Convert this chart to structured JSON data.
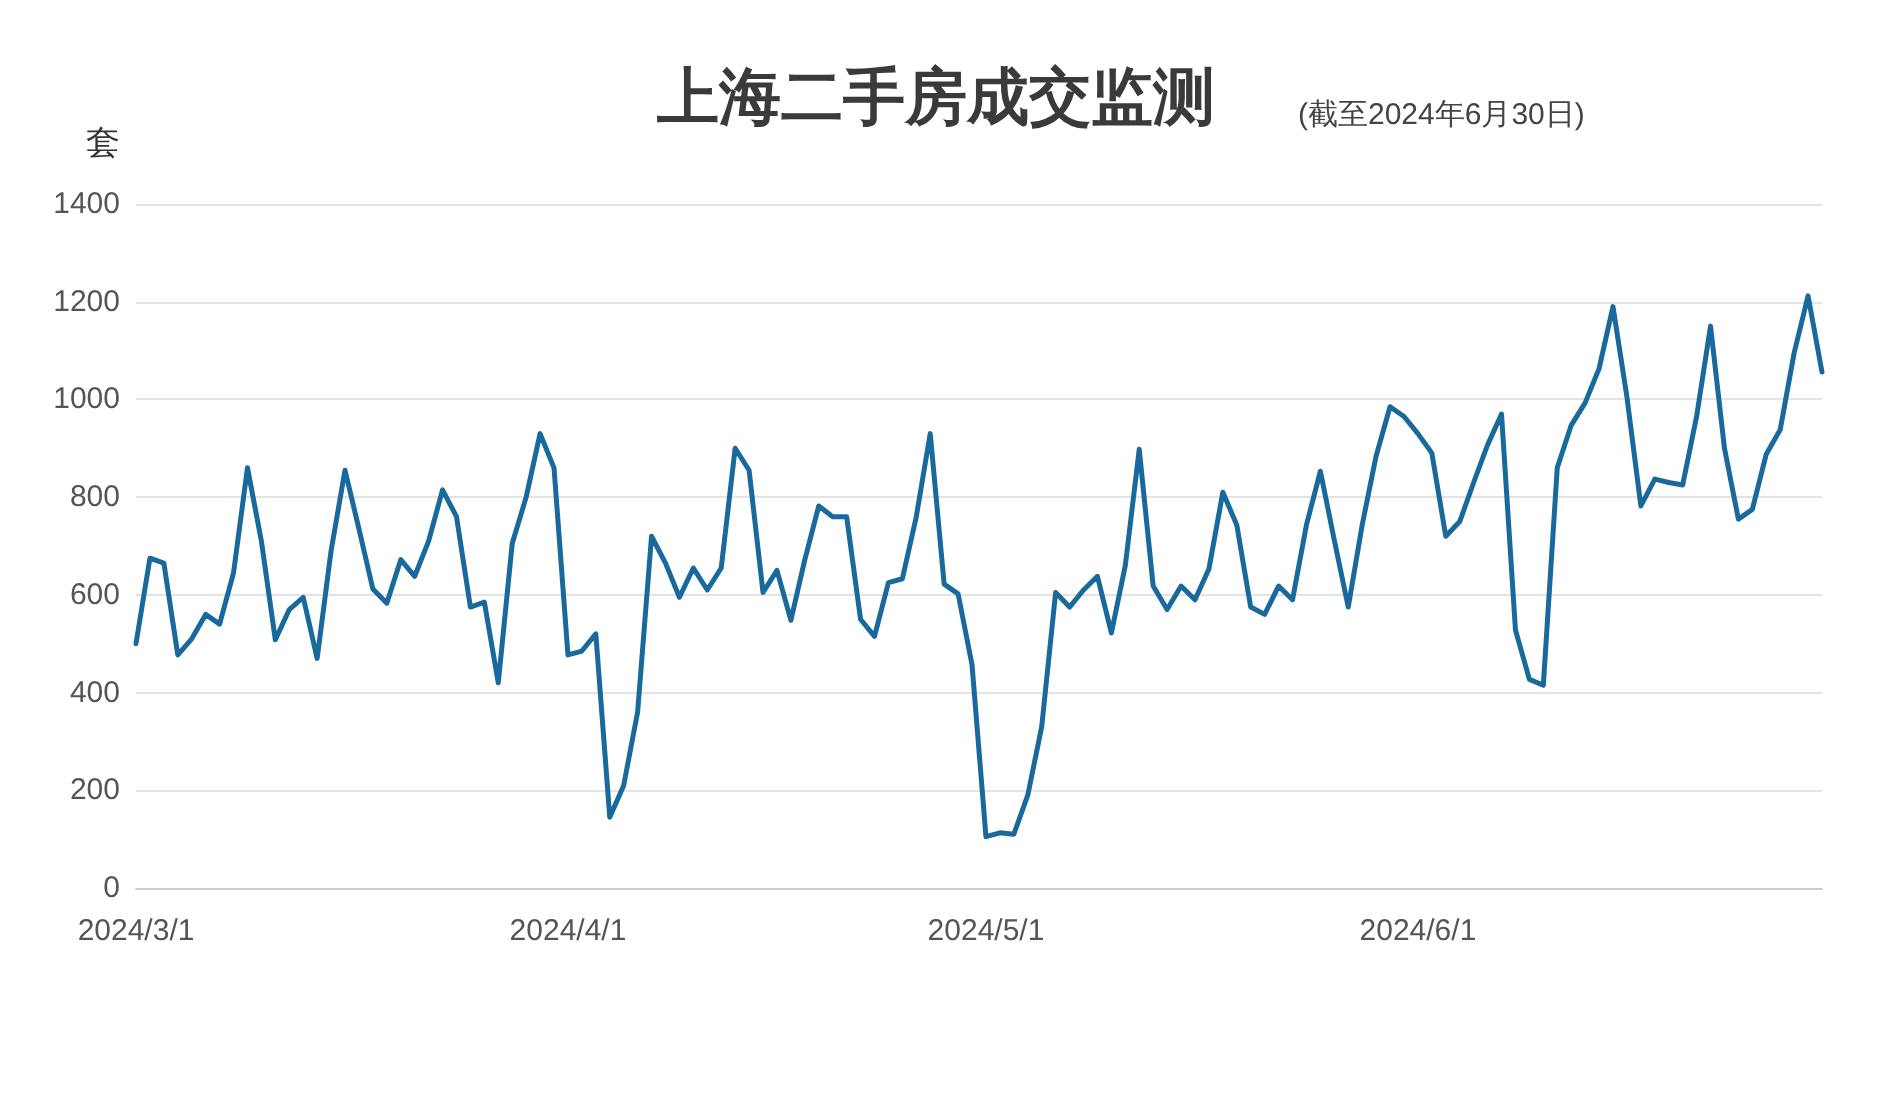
{
  "chart_data": {
    "type": "line",
    "title": "上海二手房成交监测",
    "subtitle": "(截至2024年6月30日)",
    "ylabel": "套",
    "x": [
      "2024-03-01",
      "2024-03-02",
      "2024-03-03",
      "2024-03-04",
      "2024-03-05",
      "2024-03-06",
      "2024-03-07",
      "2024-03-08",
      "2024-03-09",
      "2024-03-10",
      "2024-03-11",
      "2024-03-12",
      "2024-03-13",
      "2024-03-14",
      "2024-03-15",
      "2024-03-16",
      "2024-03-17",
      "2024-03-18",
      "2024-03-19",
      "2024-03-20",
      "2024-03-21",
      "2024-03-22",
      "2024-03-23",
      "2024-03-24",
      "2024-03-25",
      "2024-03-26",
      "2024-03-27",
      "2024-03-28",
      "2024-03-29",
      "2024-03-30",
      "2024-03-31",
      "2024-04-01",
      "2024-04-02",
      "2024-04-03",
      "2024-04-04",
      "2024-04-05",
      "2024-04-06",
      "2024-04-07",
      "2024-04-08",
      "2024-04-09",
      "2024-04-10",
      "2024-04-11",
      "2024-04-12",
      "2024-04-13",
      "2024-04-14",
      "2024-04-15",
      "2024-04-16",
      "2024-04-17",
      "2024-04-18",
      "2024-04-19",
      "2024-04-20",
      "2024-04-21",
      "2024-04-22",
      "2024-04-23",
      "2024-04-24",
      "2024-04-25",
      "2024-04-26",
      "2024-04-27",
      "2024-04-28",
      "2024-04-29",
      "2024-04-30",
      "2024-05-01",
      "2024-05-02",
      "2024-05-03",
      "2024-05-04",
      "2024-05-05",
      "2024-05-06",
      "2024-05-07",
      "2024-05-08",
      "2024-05-09",
      "2024-05-10",
      "2024-05-11",
      "2024-05-12",
      "2024-05-13",
      "2024-05-14",
      "2024-05-15",
      "2024-05-16",
      "2024-05-17",
      "2024-05-18",
      "2024-05-19",
      "2024-05-20",
      "2024-05-21",
      "2024-05-22",
      "2024-05-23",
      "2024-05-24",
      "2024-05-25",
      "2024-05-26",
      "2024-05-27",
      "2024-05-28",
      "2024-05-29",
      "2024-05-30",
      "2024-05-31",
      "2024-06-01",
      "2024-06-02",
      "2024-06-03",
      "2024-06-04",
      "2024-06-05",
      "2024-06-06",
      "2024-06-07",
      "2024-06-08",
      "2024-06-09",
      "2024-06-10",
      "2024-06-11",
      "2024-06-12",
      "2024-06-13",
      "2024-06-14",
      "2024-06-15",
      "2024-06-16",
      "2024-06-17",
      "2024-06-18",
      "2024-06-19",
      "2024-06-20",
      "2024-06-21",
      "2024-06-22",
      "2024-06-23",
      "2024-06-24",
      "2024-06-25",
      "2024-06-26",
      "2024-06-27",
      "2024-06-28",
      "2024-06-29",
      "2024-06-30"
    ],
    "series": [
      {
        "color": "#19699c",
        "values": [
          500,
          675,
          665,
          477,
          510,
          560,
          540,
          645,
          860,
          710,
          508,
          570,
          595,
          470,
          690,
          855,
          735,
          612,
          583,
          672,
          638,
          710,
          815,
          760,
          575,
          585,
          420,
          705,
          800,
          930,
          860,
          477,
          485,
          520,
          145,
          210,
          360,
          720,
          665,
          595,
          655,
          610,
          655,
          900,
          855,
          605,
          650,
          548,
          672,
          782,
          760,
          760,
          550,
          515,
          625,
          633,
          760,
          930,
          622,
          602,
          457,
          105,
          113,
          110,
          190,
          330,
          605,
          575,
          610,
          638,
          522,
          660,
          898,
          618,
          570,
          618,
          590,
          653,
          810,
          743,
          575,
          560,
          618,
          590,
          743,
          853,
          712,
          575,
          743,
          884,
          985,
          965,
          930,
          890,
          720,
          750,
          830,
          907,
          970,
          528,
          427,
          415,
          860,
          947,
          993,
          1063,
          1190,
          1005,
          782,
          837,
          830,
          825,
          965,
          1150,
          900,
          755,
          775,
          888,
          938,
          1095,
          1212,
          1056
        ]
      }
    ],
    "xlim": [
      "2024-03-01",
      "2024-06-30"
    ],
    "xticks": [
      {
        "value": "2024-03-01",
        "label": "2024/3/1"
      },
      {
        "value": "2024-04-01",
        "label": "2024/4/1"
      },
      {
        "value": "2024-05-01",
        "label": "2024/5/1"
      },
      {
        "value": "2024-06-01",
        "label": "2024/6/1"
      }
    ],
    "ylim": [
      0,
      1400
    ],
    "yticks": [
      0,
      200,
      400,
      600,
      800,
      1000,
      1200,
      1400
    ],
    "grid": "y",
    "marker": "none",
    "line_style": "solid"
  }
}
